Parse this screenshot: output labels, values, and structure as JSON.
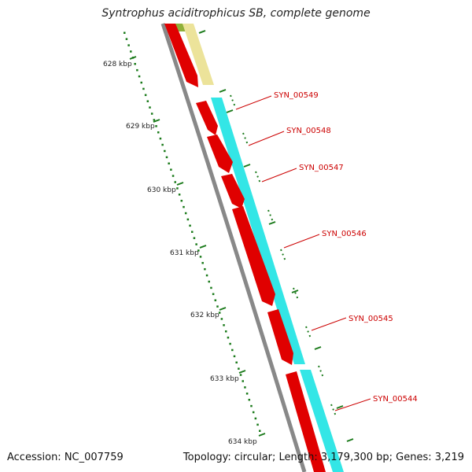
{
  "title": "Syntrophus aciditrophicus SB, complete genome",
  "footer": {
    "accession": "Accession: NC_007759",
    "summary": "Topology: circular; Length: 3,179,300 bp; Genes: 3,219"
  },
  "kbp_ticks": [
    "628 kbp",
    "629 kbp",
    "630 kbp",
    "631 kbp",
    "632 kbp",
    "633 kbp",
    "634 kbp"
  ],
  "genes": [
    "SYN_00549",
    "SYN_00548",
    "SYN_00547",
    "SYN_00546",
    "SYN_00545",
    "SYN_00544"
  ],
  "colors": {
    "cds": "#e00000",
    "track_cyan": "#33e6e6",
    "track_yellow": "#ece39a",
    "track_olive": "#8fb03a",
    "backbone": "#888888",
    "ticks": "#1a7a1a",
    "gene_label": "#cc0000"
  }
}
